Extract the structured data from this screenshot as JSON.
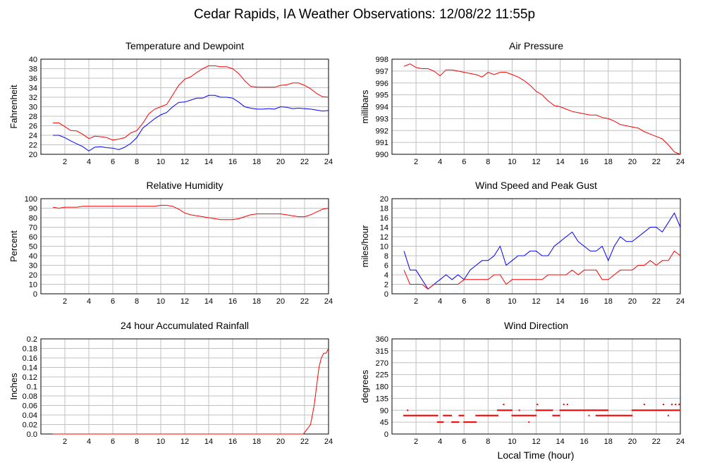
{
  "page_title": "Cedar Rapids, IA Weather Observations: 12/08/22 11:55p",
  "footer_xlabel": "Local Time (hour)",
  "colors": {
    "red": "#ff0000",
    "blue": "#0000ff",
    "grid": "#c0c0c0",
    "axis": "#000000"
  },
  "chart_data": [
    {
      "id": "temp",
      "type": "line",
      "title": "Temperature and Dewpoint",
      "ylabel": "Fahrenheit",
      "xlim": [
        0,
        24
      ],
      "ylim": [
        20,
        40
      ],
      "xticks": [
        2,
        4,
        6,
        8,
        10,
        12,
        14,
        16,
        18,
        20,
        22,
        24
      ],
      "yticks": [
        20,
        22,
        24,
        26,
        28,
        30,
        32,
        34,
        36,
        38,
        40
      ],
      "grid": true,
      "series": [
        {
          "color": "#ff0000",
          "x": [
            1,
            1.5,
            2,
            2.5,
            3,
            3.5,
            4,
            4.5,
            5,
            5.5,
            6,
            6.5,
            7,
            7.5,
            8,
            8.5,
            9,
            9.5,
            10,
            10.5,
            11,
            11.5,
            12,
            12.5,
            13,
            13.5,
            14,
            14.5,
            15,
            15.5,
            16,
            16.5,
            17,
            17.5,
            18,
            18.5,
            19,
            19.5,
            20,
            20.5,
            21,
            21.5,
            22,
            22.5,
            23,
            23.5,
            24
          ],
          "values": [
            26.6,
            26.6,
            25.8,
            25,
            24.9,
            24.2,
            23.3,
            23.8,
            23.7,
            23.5,
            23,
            23.2,
            23.5,
            24.5,
            25,
            26.5,
            28.5,
            29.5,
            30,
            30.5,
            32.5,
            34.5,
            35.8,
            36.3,
            37.2,
            38,
            38.6,
            38.6,
            38.4,
            38.4,
            38,
            37,
            35.5,
            34.3,
            34.1,
            34.1,
            34.1,
            34.1,
            34.5,
            34.6,
            35,
            35,
            34.5,
            33.8,
            32.8,
            32.1,
            32
          ]
        },
        {
          "color": "#0000ff",
          "x": [
            1,
            1.5,
            2,
            2.5,
            3,
            3.5,
            4,
            4.5,
            5,
            5.5,
            6,
            6.5,
            7,
            7.5,
            8,
            8.5,
            9,
            9.5,
            10,
            10.5,
            11,
            11.5,
            12,
            12.5,
            13,
            13.5,
            14,
            14.5,
            15,
            15.5,
            16,
            16.5,
            17,
            17.5,
            18,
            18.5,
            19,
            19.5,
            20,
            20.5,
            21,
            21.5,
            22,
            22.5,
            23,
            23.5,
            24
          ],
          "values": [
            24,
            24,
            23.5,
            22.8,
            22.2,
            21.6,
            20.7,
            21.5,
            21.6,
            21.4,
            21.3,
            21,
            21.5,
            22.3,
            23.5,
            25.5,
            26.5,
            27.5,
            28.3,
            28.8,
            30,
            30.9,
            31,
            31.4,
            31.8,
            31.8,
            32.4,
            32.4,
            32,
            32,
            31.8,
            31,
            30,
            29.7,
            29.5,
            29.5,
            29.6,
            29.5,
            30,
            29.9,
            29.6,
            29.7,
            29.6,
            29.5,
            29.3,
            29.1,
            29.2
          ]
        }
      ]
    },
    {
      "id": "pressure",
      "type": "line",
      "title": "Air Pressure",
      "ylabel": "millibars",
      "xlim": [
        0,
        24
      ],
      "ylim": [
        990,
        998
      ],
      "xticks": [
        2,
        4,
        6,
        8,
        10,
        12,
        14,
        16,
        18,
        20,
        22,
        24
      ],
      "yticks": [
        990,
        991,
        992,
        993,
        994,
        995,
        996,
        997,
        998
      ],
      "grid": true,
      "series": [
        {
          "color": "#ff0000",
          "x": [
            1,
            1.5,
            2,
            2.5,
            3,
            3.5,
            4,
            4.5,
            5,
            5.5,
            6,
            6.5,
            7,
            7.5,
            8,
            8.5,
            9,
            9.5,
            10,
            10.5,
            11,
            11.5,
            12,
            12.5,
            13,
            13.5,
            14,
            14.5,
            15,
            15.5,
            16,
            16.5,
            17,
            17.5,
            18,
            18.5,
            19,
            19.5,
            20,
            20.5,
            21,
            21.5,
            22,
            22.5,
            23,
            23.5,
            24
          ],
          "values": [
            997.4,
            997.6,
            997.3,
            997.2,
            997.2,
            997,
            996.6,
            997.1,
            997.1,
            997,
            996.9,
            996.8,
            996.7,
            996.5,
            996.9,
            996.7,
            996.9,
            996.9,
            996.7,
            996.5,
            996.2,
            995.8,
            995.3,
            995,
            994.5,
            994.1,
            994,
            993.8,
            993.6,
            993.5,
            993.4,
            993.3,
            993.3,
            993.1,
            993,
            992.8,
            992.5,
            992.4,
            992.3,
            992.2,
            991.9,
            991.7,
            991.5,
            991.3,
            990.8,
            990.2,
            990
          ]
        }
      ]
    },
    {
      "id": "humidity",
      "type": "line",
      "title": "Relative Humidity",
      "ylabel": "Percent",
      "xlim": [
        0,
        24
      ],
      "ylim": [
        0,
        100
      ],
      "xticks": [
        2,
        4,
        6,
        8,
        10,
        12,
        14,
        16,
        18,
        20,
        22,
        24
      ],
      "yticks": [
        0,
        10,
        20,
        30,
        40,
        50,
        60,
        70,
        80,
        90,
        100
      ],
      "grid": true,
      "series": [
        {
          "color": "#ff0000",
          "x": [
            1,
            1.5,
            2,
            2.5,
            3,
            3.5,
            4,
            4.5,
            5,
            5.5,
            6,
            6.5,
            7,
            7.5,
            8,
            8.5,
            9,
            9.5,
            10,
            10.5,
            11,
            11.5,
            12,
            12.5,
            13,
            13.5,
            14,
            14.5,
            15,
            15.5,
            16,
            16.5,
            17,
            17.5,
            18,
            18.5,
            19,
            19.5,
            20,
            20.5,
            21,
            21.5,
            22,
            22.5,
            23,
            23.5,
            24
          ],
          "values": [
            91,
            90,
            91,
            91,
            91,
            92,
            92,
            92,
            92,
            92,
            92,
            92,
            92,
            92,
            92,
            92,
            92,
            92,
            93,
            93,
            92,
            89,
            85,
            83,
            82,
            81,
            80,
            79,
            78,
            78,
            78,
            79,
            81,
            83,
            84,
            84,
            84,
            84,
            84,
            83,
            82,
            81,
            81,
            83,
            86,
            89,
            90
          ]
        }
      ]
    },
    {
      "id": "wind",
      "type": "line",
      "title": "Wind Speed and Peak Gust",
      "ylabel": "miles/hour",
      "xlim": [
        0,
        24
      ],
      "ylim": [
        0,
        20
      ],
      "xticks": [
        2,
        4,
        6,
        8,
        10,
        12,
        14,
        16,
        18,
        20,
        22,
        24
      ],
      "yticks": [
        0,
        2,
        4,
        6,
        8,
        10,
        12,
        14,
        16,
        18,
        20
      ],
      "grid": true,
      "series": [
        {
          "color": "#0000ff",
          "x": [
            1,
            1.5,
            2,
            2.5,
            3,
            3.5,
            4,
            4.5,
            5,
            5.5,
            6,
            6.5,
            7,
            7.5,
            8,
            8.5,
            9,
            9.5,
            10,
            10.5,
            11,
            11.5,
            12,
            12.5,
            13,
            13.5,
            14,
            14.5,
            15,
            15.5,
            16,
            16.5,
            17,
            17.5,
            18,
            18.5,
            19,
            19.5,
            20,
            20.5,
            21,
            21.5,
            22,
            22.5,
            23,
            23.5,
            24
          ],
          "values": [
            9,
            5,
            5,
            3,
            1,
            2,
            3,
            4,
            3,
            4,
            3,
            5,
            6,
            7,
            7,
            8,
            10,
            6,
            7,
            8,
            8,
            9,
            9,
            8,
            8,
            10,
            11,
            12,
            13,
            11,
            10,
            9,
            9,
            10,
            7,
            10,
            12,
            11,
            11,
            12,
            13,
            14,
            14,
            13,
            15,
            17,
            14
          ]
        },
        {
          "color": "#ff0000",
          "x": [
            1,
            1.5,
            2,
            2.5,
            3,
            3.5,
            4,
            4.5,
            5,
            5.5,
            6,
            6.5,
            7,
            7.5,
            8,
            8.5,
            9,
            9.5,
            10,
            10.5,
            11,
            11.5,
            12,
            12.5,
            13,
            13.5,
            14,
            14.5,
            15,
            15.5,
            16,
            16.5,
            17,
            17.5,
            18,
            18.5,
            19,
            19.5,
            20,
            20.5,
            21,
            21.5,
            22,
            22.5,
            23,
            23.5,
            24
          ],
          "values": [
            5,
            2,
            2,
            2,
            1,
            2,
            2,
            2,
            2,
            2,
            3,
            3,
            3,
            3,
            3,
            4,
            4,
            2,
            3,
            3,
            3,
            3,
            3,
            3,
            4,
            4,
            4,
            4,
            5,
            4,
            5,
            5,
            5,
            3,
            3,
            4,
            5,
            5,
            5,
            6,
            6,
            7,
            6,
            7,
            7,
            9,
            8
          ]
        }
      ]
    },
    {
      "id": "rain",
      "type": "line",
      "title": "24 hour Accumulated Rainfall",
      "ylabel": "Inches",
      "xlim": [
        0,
        24
      ],
      "ylim": [
        0,
        0.2
      ],
      "xticks": [
        2,
        4,
        6,
        8,
        10,
        12,
        14,
        16,
        18,
        20,
        22,
        24
      ],
      "yticks": [
        0.0,
        0.02,
        0.04,
        0.06,
        0.08,
        0.1,
        0.12,
        0.14,
        0.16,
        0.18,
        0.2
      ],
      "ytick_labels": [
        "0.0",
        "0.02",
        "0.04",
        "0.06",
        "0.08",
        "0.1",
        "0.12",
        "0.14",
        "0.16",
        "0.18",
        "0.2"
      ],
      "grid": true,
      "series": [
        {
          "color": "#ff0000",
          "x": [
            1,
            4,
            8,
            12,
            16,
            20,
            21.9,
            22.2,
            22.5,
            22.8,
            23,
            23.2,
            23.4,
            23.6,
            23.8,
            24
          ],
          "values": [
            0,
            0,
            0,
            0,
            0,
            0,
            0,
            0.01,
            0.02,
            0.06,
            0.1,
            0.14,
            0.16,
            0.17,
            0.17,
            0.18
          ]
        }
      ]
    },
    {
      "id": "direction",
      "type": "scatter",
      "title": "Wind Direction",
      "ylabel": "degrees",
      "xlabel": "Local Time (hour)",
      "xlim": [
        0,
        24
      ],
      "ylim": [
        0,
        360
      ],
      "xticks": [
        2,
        4,
        6,
        8,
        10,
        12,
        14,
        16,
        18,
        20,
        22,
        24
      ],
      "yticks": [
        0,
        45,
        90,
        135,
        180,
        225,
        270,
        315,
        360
      ],
      "grid": true,
      "series": [
        {
          "color": "#ff0000",
          "segments": [
            {
              "x0": 1.0,
              "x1": 3.8,
              "y": 70
            },
            {
              "x0": 3.8,
              "x1": 4.3,
              "y": 45
            },
            {
              "x0": 4.3,
              "x1": 5.0,
              "y": 70
            },
            {
              "x0": 5.0,
              "x1": 5.6,
              "y": 45
            },
            {
              "x0": 5.6,
              "x1": 6.0,
              "y": 70
            },
            {
              "x0": 6.0,
              "x1": 7.0,
              "y": 45
            },
            {
              "x0": 7.0,
              "x1": 8.8,
              "y": 70
            },
            {
              "x0": 8.8,
              "x1": 10.0,
              "y": 90
            },
            {
              "x0": 10.0,
              "x1": 12.0,
              "y": 70
            },
            {
              "x0": 12.0,
              "x1": 13.4,
              "y": 90
            },
            {
              "x0": 13.4,
              "x1": 14.0,
              "y": 70
            },
            {
              "x0": 14.0,
              "x1": 18.0,
              "y": 90
            },
            {
              "x0": 17.0,
              "x1": 20.0,
              "y": 70
            },
            {
              "x0": 20.0,
              "x1": 24.0,
              "y": 90
            }
          ],
          "points": [
            {
              "x": 1.3,
              "y": 90
            },
            {
              "x": 9.3,
              "y": 112
            },
            {
              "x": 10.6,
              "y": 90
            },
            {
              "x": 11.4,
              "y": 45
            },
            {
              "x": 12.1,
              "y": 112
            },
            {
              "x": 14.3,
              "y": 112
            },
            {
              "x": 14.6,
              "y": 112
            },
            {
              "x": 16.4,
              "y": 70
            },
            {
              "x": 21.0,
              "y": 112
            },
            {
              "x": 22.6,
              "y": 112
            },
            {
              "x": 23.3,
              "y": 112
            },
            {
              "x": 23.6,
              "y": 112
            },
            {
              "x": 23.0,
              "y": 70
            },
            {
              "x": 23.9,
              "y": 112
            }
          ]
        }
      ]
    }
  ]
}
